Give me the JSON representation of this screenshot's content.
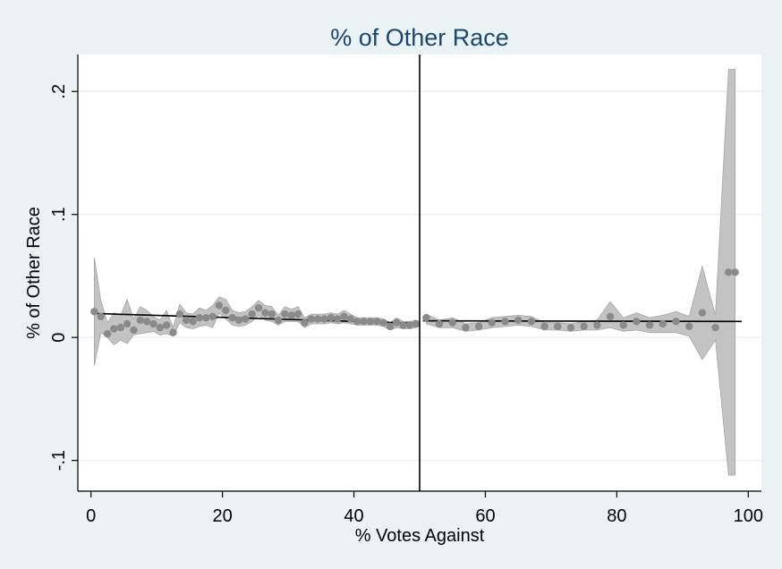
{
  "chart_data": {
    "type": "scatter",
    "title": "% of Other Race",
    "xlabel": "% Votes Against",
    "ylabel": "% of Other Race",
    "xlim": [
      -2,
      102
    ],
    "ylim": [
      -0.125,
      0.23
    ],
    "x_ticks": [
      0,
      20,
      40,
      60,
      80,
      100
    ],
    "x_tick_labels": [
      "0",
      "20",
      "40",
      "60",
      "80",
      "100"
    ],
    "y_ticks": [
      -0.1,
      0,
      0.1,
      0.2
    ],
    "y_tick_labels": [
      "-.1",
      "0",
      ".1",
      ".2"
    ],
    "grid": true,
    "cutoff_x": 50,
    "colors": {
      "plot_bg": "#ffffff",
      "outer_bg": "#eaf2f3",
      "title": "#1a476f",
      "points": "#8a8a8a",
      "ci_band": "#c3c3c3",
      "ci_edge": "#a4a4a4",
      "fit_line": "#000000",
      "grid": "#eaf2f3"
    },
    "series": [
      {
        "kind": "points",
        "x": [
          0.5,
          1.5,
          2.5,
          3.5,
          4.5,
          5.5,
          6.5,
          7.5,
          8.5,
          9.5,
          10.5,
          11.5,
          12.5,
          13.5,
          14.5,
          15.5,
          16.5,
          17.5,
          18.5,
          19.5,
          20.5,
          21.5,
          22.5,
          23.5,
          24.5,
          25.5,
          26.5,
          27.5,
          28.5,
          29.5,
          30.5,
          31.5,
          32.5,
          33.5,
          34.5,
          35.5,
          36.5,
          37.5,
          38.5,
          39.5,
          40.5,
          41.5,
          42.5,
          43.5,
          44.5,
          45.5,
          46.5,
          47.5,
          48.5,
          49.5,
          51,
          53,
          55,
          57,
          59,
          61,
          63,
          65,
          67,
          69,
          71,
          73,
          75,
          77,
          79,
          81,
          83,
          85,
          87,
          89,
          91,
          93,
          95,
          97,
          98
        ],
        "y": [
          0.021,
          0.017,
          0.003,
          0.007,
          0.008,
          0.011,
          0.006,
          0.014,
          0.013,
          0.011,
          0.008,
          0.01,
          0.004,
          0.019,
          0.014,
          0.013,
          0.016,
          0.016,
          0.017,
          0.026,
          0.022,
          0.016,
          0.014,
          0.015,
          0.019,
          0.024,
          0.02,
          0.019,
          0.014,
          0.019,
          0.018,
          0.019,
          0.012,
          0.015,
          0.015,
          0.015,
          0.016,
          0.015,
          0.017,
          0.015,
          0.013,
          0.013,
          0.013,
          0.013,
          0.012,
          0.009,
          0.012,
          0.01,
          0.01,
          0.011,
          0.016,
          0.011,
          0.012,
          0.008,
          0.009,
          0.012,
          0.013,
          0.014,
          0.013,
          0.009,
          0.009,
          0.008,
          0.009,
          0.01,
          0.017,
          0.01,
          0.013,
          0.01,
          0.011,
          0.013,
          0.009,
          0.02,
          0.008,
          0.053,
          0.053
        ]
      },
      {
        "kind": "ci_band",
        "x": [
          0.5,
          1.5,
          2.5,
          3.5,
          4.5,
          5.5,
          6.5,
          7.5,
          8.5,
          9.5,
          10.5,
          11.5,
          12.5,
          13.5,
          14.5,
          15.5,
          16.5,
          17.5,
          18.5,
          19.5,
          20.5,
          21.5,
          22.5,
          23.5,
          24.5,
          25.5,
          26.5,
          27.5,
          28.5,
          29.5,
          30.5,
          31.5,
          32.5,
          33.5,
          34.5,
          35.5,
          36.5,
          37.5,
          38.5,
          39.5,
          40.5,
          41.5,
          42.5,
          43.5,
          44.5,
          45.5,
          46.5,
          47.5,
          48.5,
          49.5,
          51,
          53,
          55,
          57,
          59,
          61,
          63,
          65,
          67,
          69,
          71,
          73,
          75,
          77,
          79,
          81,
          83,
          85,
          87,
          89,
          91,
          93,
          95,
          97,
          98
        ],
        "lower": [
          -0.023,
          0.004,
          0.0,
          -0.006,
          -0.002,
          -0.005,
          0.002,
          0.003,
          0.004,
          0.005,
          0.002,
          0.003,
          0.001,
          0.012,
          0.008,
          0.007,
          0.009,
          0.01,
          0.008,
          0.02,
          0.015,
          0.01,
          0.009,
          0.01,
          0.013,
          0.018,
          0.014,
          0.013,
          0.01,
          0.013,
          0.013,
          0.013,
          0.008,
          0.011,
          0.011,
          0.011,
          0.012,
          0.011,
          0.012,
          0.011,
          0.01,
          0.01,
          0.01,
          0.01,
          0.009,
          0.006,
          0.008,
          0.007,
          0.007,
          0.008,
          0.011,
          0.008,
          0.008,
          0.005,
          0.006,
          0.008,
          0.009,
          0.01,
          0.009,
          0.006,
          0.006,
          0.005,
          0.006,
          0.006,
          0.008,
          0.005,
          0.006,
          0.004,
          0.004,
          0.004,
          0.001,
          -0.018,
          -0.002,
          -0.112,
          -0.112
        ],
        "upper": [
          0.065,
          0.03,
          0.012,
          0.02,
          0.018,
          0.031,
          0.015,
          0.025,
          0.022,
          0.017,
          0.014,
          0.022,
          0.008,
          0.027,
          0.02,
          0.019,
          0.024,
          0.022,
          0.026,
          0.033,
          0.031,
          0.022,
          0.02,
          0.021,
          0.025,
          0.03,
          0.026,
          0.025,
          0.018,
          0.025,
          0.023,
          0.025,
          0.016,
          0.019,
          0.019,
          0.019,
          0.02,
          0.019,
          0.022,
          0.019,
          0.016,
          0.016,
          0.016,
          0.016,
          0.015,
          0.012,
          0.016,
          0.013,
          0.013,
          0.014,
          0.019,
          0.014,
          0.016,
          0.011,
          0.012,
          0.016,
          0.017,
          0.018,
          0.017,
          0.012,
          0.012,
          0.011,
          0.013,
          0.014,
          0.029,
          0.016,
          0.02,
          0.016,
          0.018,
          0.021,
          0.017,
          0.058,
          0.018,
          0.218,
          0.218
        ]
      },
      {
        "kind": "fit_line",
        "segments": [
          {
            "x": [
              0.5,
              49.5
            ],
            "y": [
              0.0195,
              0.0115
            ]
          },
          {
            "x": [
              50.5,
              99
            ],
            "y": [
              0.0135,
              0.013
            ]
          }
        ]
      }
    ]
  }
}
